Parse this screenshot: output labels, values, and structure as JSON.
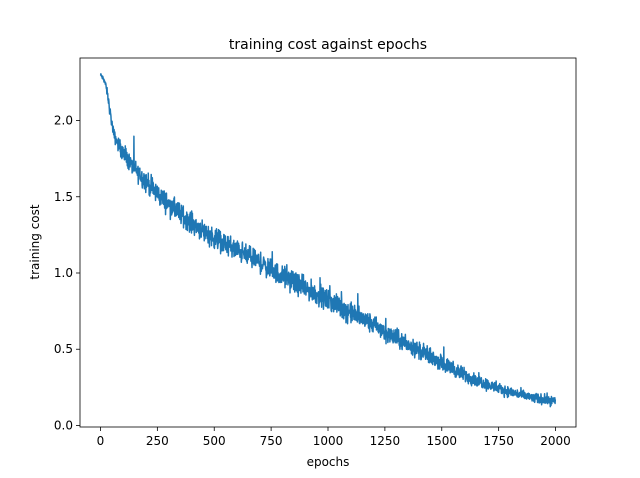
{
  "chart_data": {
    "type": "line",
    "title": "training cost against epochs",
    "xlabel": "epochs",
    "ylabel": "training cost",
    "xlim": [
      -90,
      2090
    ],
    "ylim": [
      -0.01,
      2.41
    ],
    "xticks": [
      0,
      250,
      500,
      750,
      1000,
      1250,
      1500,
      1750,
      2000
    ],
    "yticks": [
      0.0,
      0.5,
      1.0,
      1.5,
      2.0
    ],
    "xtick_labels": [
      "0",
      "250",
      "500",
      "750",
      "1000",
      "1250",
      "1500",
      "1750",
      "2000"
    ],
    "ytick_labels": [
      "0.0",
      "0.5",
      "1.0",
      "1.5",
      "2.0"
    ],
    "grid": false,
    "legend": false,
    "series": [
      {
        "color": "#1f77b4",
        "x": [
          0,
          10,
          20,
          30,
          40,
          50,
          60,
          80,
          100,
          120,
          150,
          175,
          200,
          250,
          300,
          350,
          400,
          450,
          500,
          550,
          600,
          650,
          700,
          750,
          800,
          850,
          900,
          950,
          1000,
          1050,
          1100,
          1150,
          1200,
          1250,
          1300,
          1350,
          1400,
          1450,
          1500,
          1550,
          1600,
          1650,
          1700,
          1750,
          1800,
          1850,
          1900,
          1950,
          2000
        ],
        "values": [
          2.3,
          2.28,
          2.25,
          2.18,
          2.08,
          1.98,
          1.9,
          1.84,
          1.78,
          1.74,
          1.68,
          1.64,
          1.6,
          1.52,
          1.45,
          1.39,
          1.33,
          1.28,
          1.23,
          1.19,
          1.15,
          1.11,
          1.07,
          1.02,
          0.98,
          0.94,
          0.9,
          0.86,
          0.82,
          0.78,
          0.74,
          0.7,
          0.66,
          0.61,
          0.57,
          0.53,
          0.49,
          0.45,
          0.41,
          0.37,
          0.33,
          0.3,
          0.27,
          0.24,
          0.22,
          0.2,
          0.18,
          0.17,
          0.16
        ],
        "noise_amplitude": [
          0.02,
          0.02,
          0.03,
          0.04,
          0.05,
          0.05,
          0.06,
          0.07,
          0.08,
          0.08,
          0.09,
          0.09,
          0.1,
          0.1,
          0.1,
          0.1,
          0.1,
          0.1,
          0.1,
          0.1,
          0.1,
          0.1,
          0.1,
          0.1,
          0.1,
          0.1,
          0.1,
          0.1,
          0.1,
          0.1,
          0.1,
          0.1,
          0.09,
          0.09,
          0.09,
          0.08,
          0.08,
          0.08,
          0.07,
          0.07,
          0.07,
          0.06,
          0.06,
          0.05,
          0.05,
          0.05,
          0.05,
          0.05,
          0.05
        ]
      }
    ]
  }
}
